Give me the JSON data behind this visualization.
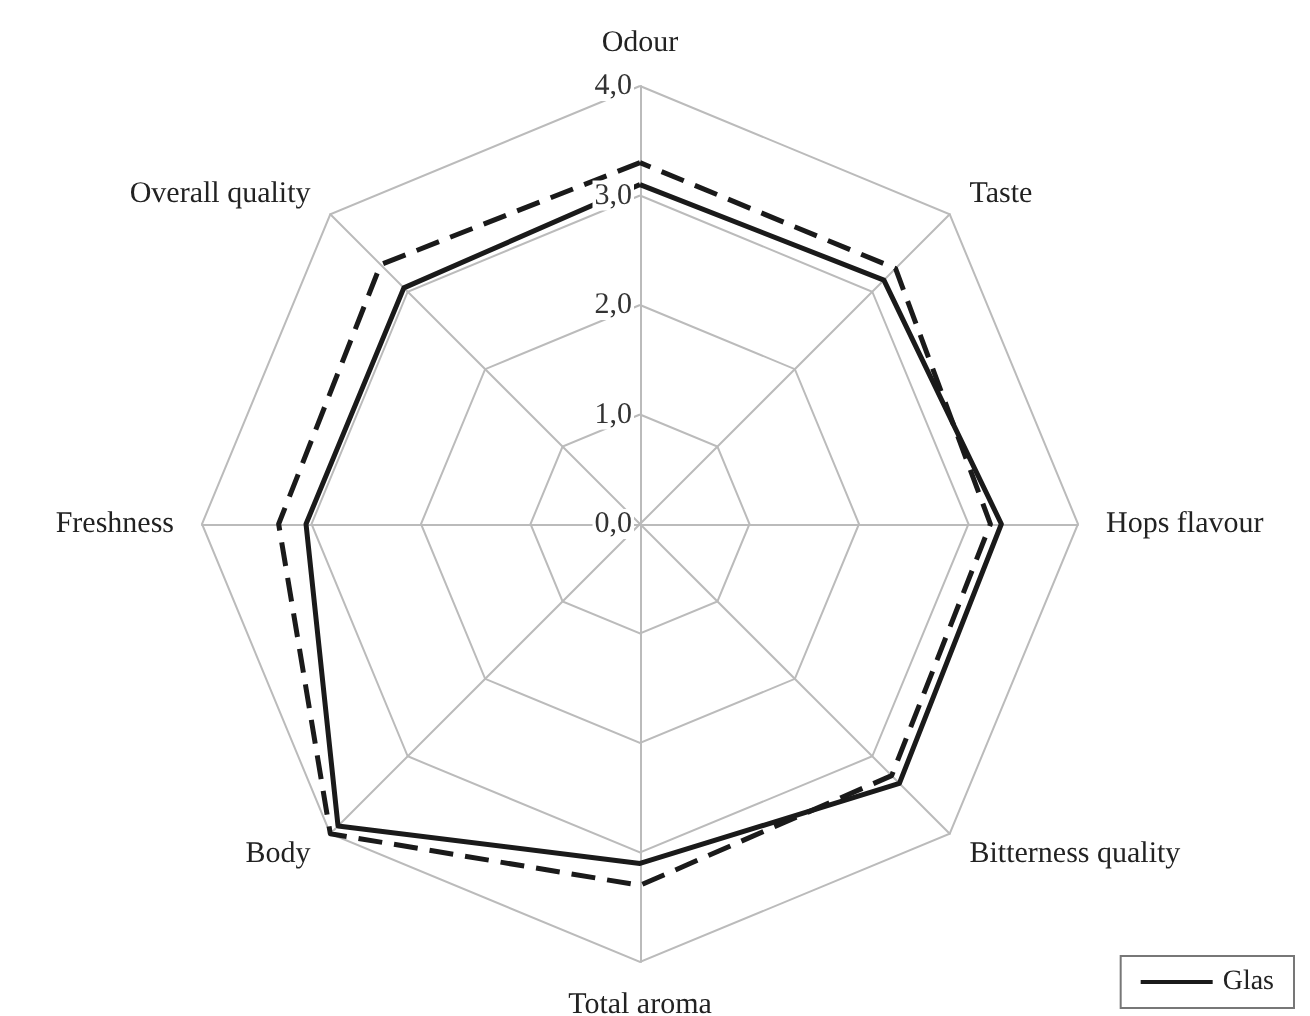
{
  "chart_data": {
    "type": "radar",
    "categories": [
      "Odour",
      "Taste",
      "Hops flavour",
      "Bitterness quality",
      "Total aroma",
      "Body",
      "Freshness",
      "Overall quality"
    ],
    "series": [
      {
        "name": "Glas",
        "color": "#1a1a1a",
        "line_style": "solid",
        "values": [
          3.1,
          3.15,
          3.3,
          3.35,
          3.1,
          3.9,
          3.05,
          3.05
        ]
      },
      {
        "color": "#1a1a1a",
        "line_style": "dashed",
        "values": [
          3.3,
          3.3,
          3.2,
          3.25,
          3.3,
          4.0,
          3.3,
          3.35
        ]
      }
    ],
    "ylim": [
      0,
      4
    ],
    "yticks": [
      {
        "value": 0,
        "label": "0,0"
      },
      {
        "value": 1,
        "label": "1,0"
      },
      {
        "value": 2,
        "label": "2,0"
      },
      {
        "value": 3,
        "label": "3,0"
      },
      {
        "value": 4,
        "label": "4,0"
      }
    ],
    "legend": "bottom right",
    "grid": true,
    "marker": "none"
  }
}
